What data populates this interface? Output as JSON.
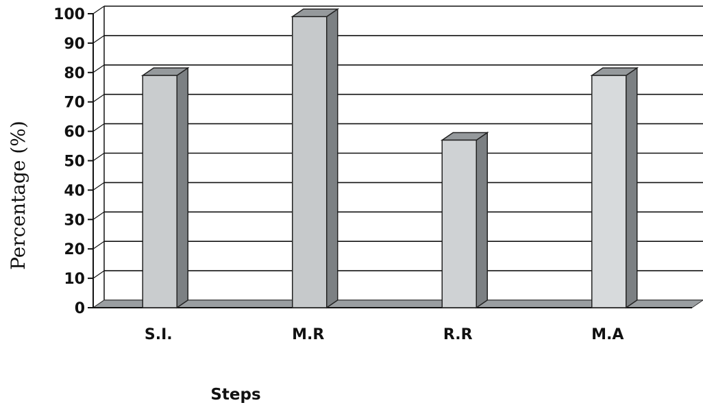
{
  "chart_data": {
    "type": "bar",
    "categories": [
      "S.I.",
      "M.R",
      "R.R",
      "M.A"
    ],
    "series": [
      {
        "values": [
          79,
          99,
          57,
          79
        ]
      }
    ],
    "ylabel": "Percentage  (%)",
    "xlabel": "Steps",
    "ylim": [
      0,
      100
    ],
    "yticks": [
      0,
      10,
      20,
      30,
      40,
      50,
      60,
      70,
      80,
      90,
      100
    ],
    "grid": true,
    "three_d": true,
    "colors": {
      "bar_front": [
        "#c9ccce",
        "#c6c9cb",
        "#cfd2d4",
        "#d7dadc"
      ],
      "bar_side": "#7c8083",
      "bar_top": "#95999c",
      "floor": "#9a9ea1",
      "grid": "#111111"
    }
  }
}
